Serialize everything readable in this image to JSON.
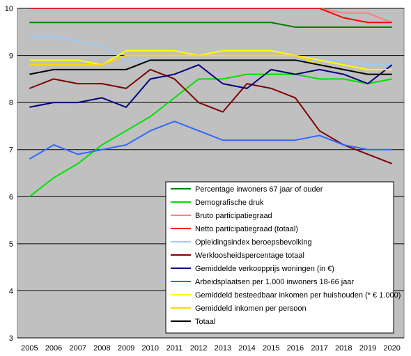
{
  "chart_data": {
    "type": "line",
    "title": "",
    "xlabel": "",
    "ylabel": "",
    "x": [
      2005,
      2006,
      2007,
      2008,
      2009,
      2010,
      2011,
      2012,
      2013,
      2014,
      2015,
      2016,
      2017,
      2018,
      2019,
      2020
    ],
    "ylim": [
      3,
      10
    ],
    "yticks": [
      "3",
      "4",
      "5",
      "6",
      "7",
      "8",
      "9",
      "10"
    ],
    "grid": "horizontal",
    "plot_background": "#c0c0c0",
    "legend_position": "bottom-right inside plot",
    "series": [
      {
        "name": "Percentage inwoners 67 jaar of ouder",
        "color": "#008000",
        "values": [
          9.7,
          9.7,
          9.7,
          9.7,
          9.7,
          9.7,
          9.7,
          9.7,
          9.7,
          9.7,
          9.7,
          9.6,
          9.6,
          9.6,
          9.6,
          9.6
        ]
      },
      {
        "name": "Demografische druk",
        "color": "#00e000",
        "values": [
          6.0,
          6.4,
          6.7,
          7.1,
          7.4,
          7.7,
          8.1,
          8.5,
          8.5,
          8.6,
          8.6,
          8.6,
          8.5,
          8.5,
          8.4,
          8.5
        ]
      },
      {
        "name": "Bruto participatiegraad",
        "color": "#ff8080",
        "values": [
          10.0,
          10.0,
          10.0,
          10.0,
          10.0,
          10.0,
          10.0,
          10.0,
          10.0,
          10.0,
          10.0,
          10.0,
          10.0,
          9.9,
          9.9,
          9.7
        ]
      },
      {
        "name": "Netto participatiegraad (totaal)",
        "color": "#ff0000",
        "values": [
          10.0,
          10.0,
          10.0,
          10.0,
          10.0,
          10.0,
          10.0,
          10.0,
          10.0,
          10.0,
          10.0,
          10.0,
          10.0,
          9.8,
          9.7,
          9.7
        ]
      },
      {
        "name": "Opleidingsindex beroepsbevolking",
        "color": "#99ccff",
        "values": [
          9.4,
          9.4,
          9.3,
          9.2,
          8.9,
          8.9,
          8.9,
          8.9,
          8.9,
          8.9,
          8.9,
          8.9,
          8.9,
          8.9,
          8.8,
          8.8
        ]
      },
      {
        "name": "Werkloosheidspercentage totaal",
        "color": "#800000",
        "values": [
          8.3,
          8.5,
          8.4,
          8.4,
          8.3,
          8.7,
          8.5,
          8.0,
          7.8,
          8.4,
          8.3,
          8.1,
          7.4,
          7.1,
          6.9,
          6.7
        ]
      },
      {
        "name": "Gemiddelde verkoopprijs woningen (in €)",
        "color": "#000080",
        "values": [
          7.9,
          8.0,
          8.0,
          8.1,
          7.9,
          8.5,
          8.6,
          8.8,
          8.4,
          8.3,
          8.7,
          8.6,
          8.7,
          8.6,
          8.4,
          8.8
        ]
      },
      {
        "name": "Arbeidsplaatsen per 1.000 inwoners 18-66 jaar",
        "color": "#3366ff",
        "values": [
          6.8,
          7.1,
          6.9,
          7.0,
          7.1,
          7.4,
          7.6,
          7.4,
          7.2,
          7.2,
          7.2,
          7.2,
          7.3,
          7.1,
          7.0,
          7.0
        ]
      },
      {
        "name": "Gemiddeld besteedbaar inkomen per huishouden (* € 1.000)",
        "color": "#ffff00",
        "values": [
          8.9,
          8.9,
          8.9,
          8.8,
          9.1,
          9.1,
          9.1,
          9.0,
          9.1,
          9.1,
          9.1,
          9.0,
          8.9,
          8.8,
          8.7,
          8.7
        ]
      },
      {
        "name": "Gemiddeld inkomen per persoon",
        "color": "#ffd700",
        "values": [
          8.8,
          8.8,
          8.8,
          8.8,
          9.0,
          9.0,
          9.0,
          9.0,
          9.0,
          9.0,
          9.0,
          9.0,
          8.8,
          8.7,
          8.6,
          8.6
        ]
      },
      {
        "name": "Totaal",
        "color": "#000000",
        "values": [
          8.6,
          8.7,
          8.7,
          8.7,
          8.7,
          8.9,
          8.9,
          8.9,
          8.9,
          8.9,
          8.9,
          8.9,
          8.8,
          8.7,
          8.6,
          8.6
        ]
      }
    ]
  }
}
